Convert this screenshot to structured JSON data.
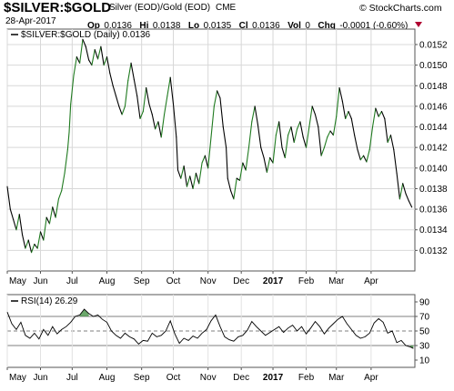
{
  "header": {
    "symbol": "$SILVER:$GOLD",
    "description": "Silver (EOD)/Gold (EOD)",
    "exchange": "CME",
    "brand": "© StockCharts.com",
    "date": "28-Apr-2017",
    "quote": [
      {
        "label": "Op",
        "value": "0.0136"
      },
      {
        "label": "Hi",
        "value": "0.0138"
      },
      {
        "label": "Lo",
        "value": "0.0135"
      },
      {
        "label": "Cl",
        "value": "0.0136"
      },
      {
        "label": "Vol",
        "value": "0"
      },
      {
        "label": "Chg",
        "value": "-0.0001 (-0.60%)"
      }
    ],
    "colors": {
      "down_arrow": "#b00030",
      "price_up": "#1f7a1f",
      "price_down": "#000000",
      "rsi_fill": "#3a8a3a"
    }
  },
  "chart_data": [
    {
      "type": "line",
      "legend": "$SILVER:$GOLD (Daily) 0.0136",
      "y_range": [
        0.013,
        0.01535
      ],
      "y_ticks": [
        "0.0152",
        "0.0150",
        "0.0148",
        "0.0146",
        "0.0144",
        "0.0142",
        "0.0140",
        "0.0138",
        "0.0136",
        "0.0134",
        "0.0132"
      ],
      "y_tick_values": [
        0.0152,
        0.015,
        0.0148,
        0.0146,
        0.0144,
        0.0142,
        0.014,
        0.0138,
        0.0136,
        0.0134,
        0.0132
      ],
      "x_labels": [
        "May",
        "Jun",
        "Jul",
        "Aug",
        "Sep",
        "Oct",
        "Nov",
        "Dec",
        "2017",
        "Feb",
        "Mar",
        "Apr"
      ],
      "x_label_days": [
        0,
        22,
        43,
        66,
        89,
        110,
        133,
        155,
        176,
        198,
        218,
        241
      ],
      "x_range_days": [
        0,
        270
      ],
      "grid": true,
      "values": [
        [
          0,
          0.01382
        ],
        [
          2,
          0.0136
        ],
        [
          4,
          0.0135
        ],
        [
          6,
          0.0134
        ],
        [
          8,
          0.01355
        ],
        [
          10,
          0.01335
        ],
        [
          12,
          0.01322
        ],
        [
          14,
          0.0133
        ],
        [
          16,
          0.01318
        ],
        [
          18,
          0.01326
        ],
        [
          20,
          0.01322
        ],
        [
          22,
          0.01338
        ],
        [
          24,
          0.0133
        ],
        [
          26,
          0.01352
        ],
        [
          28,
          0.01346
        ],
        [
          30,
          0.01362
        ],
        [
          32,
          0.01352
        ],
        [
          34,
          0.0137
        ],
        [
          36,
          0.01378
        ],
        [
          38,
          0.01395
        ],
        [
          40,
          0.01418
        ],
        [
          41,
          0.01435
        ],
        [
          42,
          0.01462
        ],
        [
          44,
          0.0149
        ],
        [
          46,
          0.01508
        ],
        [
          48,
          0.01502
        ],
        [
          50,
          0.01525
        ],
        [
          52,
          0.01518
        ],
        [
          54,
          0.01505
        ],
        [
          56,
          0.015
        ],
        [
          58,
          0.01515
        ],
        [
          60,
          0.01506
        ],
        [
          62,
          0.01518
        ],
        [
          64,
          0.015
        ],
        [
          66,
          0.01508
        ],
        [
          68,
          0.01492
        ],
        [
          70,
          0.0148
        ],
        [
          72,
          0.0147
        ],
        [
          74,
          0.0146
        ],
        [
          76,
          0.01452
        ],
        [
          78,
          0.0146
        ],
        [
          80,
          0.01485
        ],
        [
          82,
          0.01502
        ],
        [
          84,
          0.01486
        ],
        [
          86,
          0.0147
        ],
        [
          88,
          0.01448
        ],
        [
          90,
          0.01455
        ],
        [
          92,
          0.01478
        ],
        [
          94,
          0.01462
        ],
        [
          96,
          0.01452
        ],
        [
          98,
          0.01438
        ],
        [
          100,
          0.01445
        ],
        [
          102,
          0.0143
        ],
        [
          104,
          0.01452
        ],
        [
          106,
          0.0147
        ],
        [
          108,
          0.01488
        ],
        [
          110,
          0.01462
        ],
        [
          112,
          0.0143
        ],
        [
          113,
          0.01398
        ],
        [
          115,
          0.0139
        ],
        [
          117,
          0.01402
        ],
        [
          119,
          0.01382
        ],
        [
          121,
          0.01392
        ],
        [
          123,
          0.0138
        ],
        [
          125,
          0.01395
        ],
        [
          127,
          0.01385
        ],
        [
          129,
          0.01405
        ],
        [
          131,
          0.01412
        ],
        [
          133,
          0.014
        ],
        [
          135,
          0.0143
        ],
        [
          137,
          0.0146
        ],
        [
          139,
          0.01475
        ],
        [
          141,
          0.01468
        ],
        [
          143,
          0.0144
        ],
        [
          145,
          0.0142
        ],
        [
          146,
          0.0139
        ],
        [
          148,
          0.01378
        ],
        [
          150,
          0.0137
        ],
        [
          152,
          0.0139
        ],
        [
          154,
          0.01388
        ],
        [
          156,
          0.01405
        ],
        [
          158,
          0.01398
        ],
        [
          160,
          0.0142
        ],
        [
          162,
          0.01445
        ],
        [
          164,
          0.0146
        ],
        [
          166,
          0.01442
        ],
        [
          168,
          0.0142
        ],
        [
          170,
          0.0141
        ],
        [
          172,
          0.01396
        ],
        [
          174,
          0.0141
        ],
        [
          176,
          0.01405
        ],
        [
          178,
          0.01432
        ],
        [
          180,
          0.01445
        ],
        [
          182,
          0.0142
        ],
        [
          184,
          0.0141
        ],
        [
          186,
          0.01432
        ],
        [
          188,
          0.0144
        ],
        [
          190,
          0.01425
        ],
        [
          192,
          0.01438
        ],
        [
          194,
          0.01445
        ],
        [
          196,
          0.0143
        ],
        [
          198,
          0.0142
        ],
        [
          200,
          0.0144
        ],
        [
          202,
          0.0146
        ],
        [
          204,
          0.01452
        ],
        [
          206,
          0.0144
        ],
        [
          208,
          0.01412
        ],
        [
          210,
          0.0142
        ],
        [
          212,
          0.0143
        ],
        [
          214,
          0.01436
        ],
        [
          216,
          0.01432
        ],
        [
          218,
          0.0145
        ],
        [
          220,
          0.01478
        ],
        [
          222,
          0.01465
        ],
        [
          224,
          0.01448
        ],
        [
          226,
          0.01455
        ],
        [
          228,
          0.01448
        ],
        [
          230,
          0.01432
        ],
        [
          232,
          0.01418
        ],
        [
          234,
          0.01408
        ],
        [
          236,
          0.01412
        ],
        [
          238,
          0.01406
        ],
        [
          240,
          0.01418
        ],
        [
          242,
          0.0144
        ],
        [
          244,
          0.01458
        ],
        [
          246,
          0.0145
        ],
        [
          248,
          0.01455
        ],
        [
          250,
          0.01448
        ],
        [
          252,
          0.01425
        ],
        [
          254,
          0.01432
        ],
        [
          256,
          0.01418
        ],
        [
          258,
          0.01395
        ],
        [
          260,
          0.0137
        ],
        [
          262,
          0.01385
        ],
        [
          264,
          0.01375
        ],
        [
          266,
          0.01368
        ],
        [
          268,
          0.01362
        ]
      ]
    },
    {
      "type": "line",
      "legend": "RSI(14) 26.29",
      "y_range": [
        0,
        100
      ],
      "y_ticks": [
        "90",
        "70",
        "50",
        "30",
        "10"
      ],
      "y_tick_values": [
        90,
        70,
        50,
        30,
        10
      ],
      "reference_lines": [
        70,
        50,
        30
      ],
      "x_labels": [
        "May",
        "Jun",
        "Jul",
        "Aug",
        "Sep",
        "Oct",
        "Nov",
        "Dec",
        "2017",
        "Feb",
        "Mar",
        "Apr"
      ],
      "x_label_days": [
        0,
        22,
        43,
        66,
        89,
        110,
        133,
        155,
        176,
        198,
        218,
        241
      ],
      "x_range_days": [
        0,
        270
      ],
      "values": [
        [
          0,
          76
        ],
        [
          3,
          60
        ],
        [
          6,
          52
        ],
        [
          9,
          62
        ],
        [
          12,
          44
        ],
        [
          15,
          40
        ],
        [
          18,
          47
        ],
        [
          21,
          39
        ],
        [
          24,
          52
        ],
        [
          27,
          44
        ],
        [
          30,
          56
        ],
        [
          33,
          46
        ],
        [
          36,
          52
        ],
        [
          39,
          56
        ],
        [
          42,
          62
        ],
        [
          45,
          70
        ],
        [
          48,
          72
        ],
        [
          51,
          80
        ],
        [
          54,
          74
        ],
        [
          57,
          70
        ],
        [
          60,
          72
        ],
        [
          63,
          66
        ],
        [
          66,
          62
        ],
        [
          69,
          50
        ],
        [
          72,
          44
        ],
        [
          75,
          40
        ],
        [
          78,
          47
        ],
        [
          81,
          42
        ],
        [
          84,
          39
        ],
        [
          87,
          32
        ],
        [
          90,
          37
        ],
        [
          93,
          36
        ],
        [
          96,
          47
        ],
        [
          99,
          42
        ],
        [
          102,
          44
        ],
        [
          105,
          50
        ],
        [
          108,
          64
        ],
        [
          111,
          46
        ],
        [
          114,
          33
        ],
        [
          117,
          40
        ],
        [
          120,
          37
        ],
        [
          123,
          43
        ],
        [
          126,
          40
        ],
        [
          129,
          47
        ],
        [
          132,
          52
        ],
        [
          135,
          64
        ],
        [
          138,
          72
        ],
        [
          141,
          56
        ],
        [
          144,
          42
        ],
        [
          147,
          38
        ],
        [
          150,
          36
        ],
        [
          153,
          42
        ],
        [
          156,
          44
        ],
        [
          159,
          51
        ],
        [
          162,
          63
        ],
        [
          165,
          56
        ],
        [
          168,
          50
        ],
        [
          171,
          44
        ],
        [
          174,
          48
        ],
        [
          177,
          52
        ],
        [
          180,
          56
        ],
        [
          183,
          48
        ],
        [
          186,
          54
        ],
        [
          189,
          58
        ],
        [
          192,
          50
        ],
        [
          195,
          56
        ],
        [
          198,
          46
        ],
        [
          201,
          54
        ],
        [
          204,
          63
        ],
        [
          207,
          56
        ],
        [
          210,
          46
        ],
        [
          213,
          54
        ],
        [
          216,
          60
        ],
        [
          219,
          66
        ],
        [
          222,
          70
        ],
        [
          225,
          60
        ],
        [
          228,
          52
        ],
        [
          231,
          44
        ],
        [
          234,
          40
        ],
        [
          237,
          42
        ],
        [
          240,
          47
        ],
        [
          243,
          61
        ],
        [
          246,
          67
        ],
        [
          249,
          62
        ],
        [
          252,
          47
        ],
        [
          255,
          50
        ],
        [
          258,
          34
        ],
        [
          261,
          37
        ],
        [
          264,
          30
        ],
        [
          267,
          28
        ],
        [
          269,
          26
        ]
      ]
    }
  ]
}
